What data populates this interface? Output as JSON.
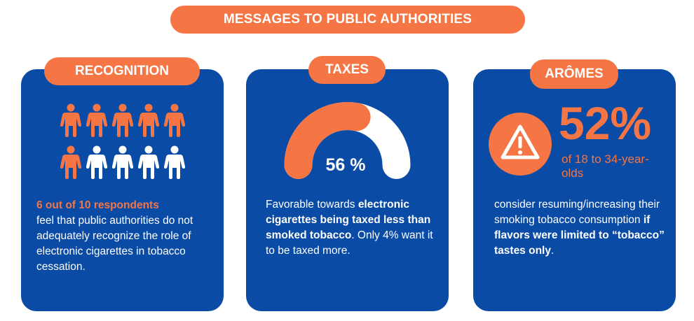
{
  "header": {
    "title": "MESSAGES TO PUBLIC AUTHORITIES"
  },
  "colors": {
    "accent": "#F57644",
    "card": "#0A4BA6",
    "white": "#FFFFFF"
  },
  "cards": [
    {
      "tab": "RECOGNITION",
      "people": {
        "total": 10,
        "highlighted": 6,
        "icon": "person-icon"
      },
      "highlight": "6 out of 10 respondents",
      "text": "feel that public authorities do not adequately recognize the role of electronic cigarettes in tobacco cessation."
    },
    {
      "tab": "TAXES",
      "gauge": {
        "value": 56,
        "label": "56 %"
      },
      "text_a": "Favorable towards ",
      "text_b": "electronic cigarettes being taxed less than smoked tobacco",
      "text_c": ". Only 4% want it to be taxed more."
    },
    {
      "tab": "ARÔMES",
      "icon": "warning-icon",
      "stat": "52%",
      "stat_sub": "of 18 to 34-year-olds",
      "text_a": "consider resuming/increasing their smoking tobacco consumption ",
      "text_b": "if flavors were limited to “tobacco” tastes only",
      "text_c": "."
    }
  ]
}
